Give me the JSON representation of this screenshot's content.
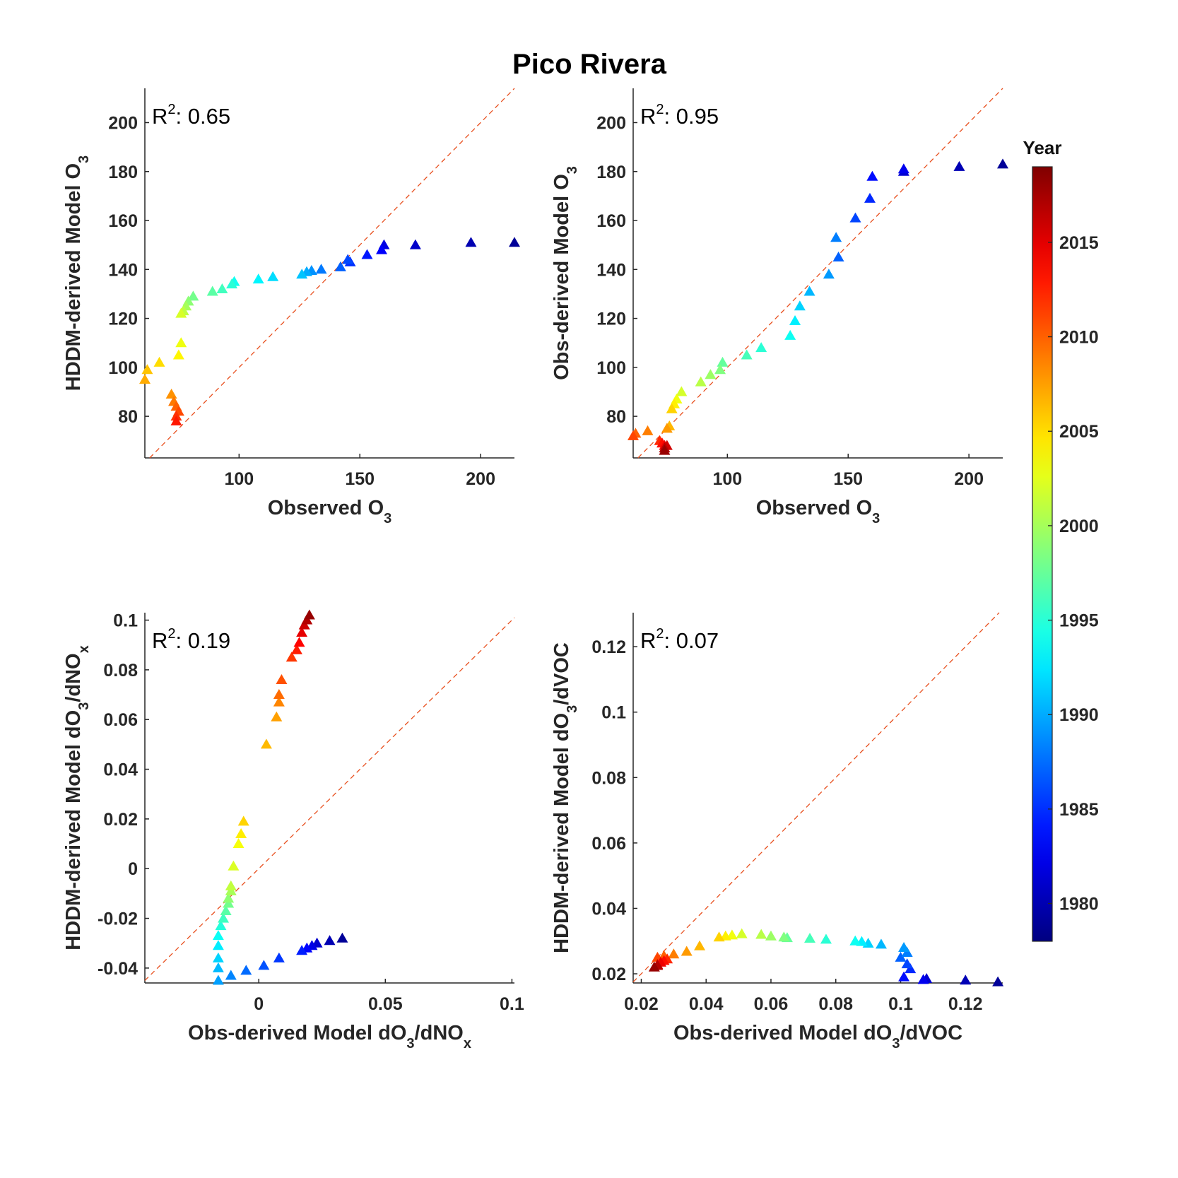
{
  "figure_title": "Pico Rivera",
  "colorbar": {
    "title": "Year",
    "range": [
      1978,
      2019
    ],
    "ticks": [
      1980,
      1985,
      1990,
      1995,
      2000,
      2005,
      2010,
      2015
    ],
    "tick_labels": [
      "1980",
      "1985",
      "1990",
      "1995",
      "2000",
      "2005",
      "2010",
      "2015"
    ],
    "colormap": "jet"
  },
  "reference_line": {
    "style": "dashed",
    "color": "#e8501f",
    "meaning": "1:1"
  },
  "chart_data": [
    {
      "type": "scatter",
      "panel": "top-left",
      "marker": "triangle",
      "annotation": {
        "prefix": "R",
        "sup": "2",
        "text": ": 0.65"
      },
      "xlabel": {
        "main": "Observed O",
        "sub": "3",
        "rest": ""
      },
      "ylabel": {
        "main": "HDDM-derived Model O",
        "sub": "3",
        "rest": ""
      },
      "xlim": [
        61,
        214
      ],
      "ylim": [
        63,
        214
      ],
      "xticks": [
        100,
        150,
        200
      ],
      "xtick_labels": [
        "100",
        "150",
        "200"
      ],
      "yticks": [
        80,
        100,
        120,
        140,
        160,
        180,
        200
      ],
      "ytick_labels": [
        "80",
        "100",
        "120",
        "140",
        "160",
        "180",
        "200"
      ],
      "points": [
        [
          214,
          151,
          1979
        ],
        [
          196,
          151,
          1980
        ],
        [
          173,
          150,
          1981
        ],
        [
          160,
          150,
          1982
        ],
        [
          159,
          148,
          1983
        ],
        [
          153,
          146,
          1984
        ],
        [
          146,
          143,
          1985
        ],
        [
          145,
          144,
          1986
        ],
        [
          142,
          141,
          1987
        ],
        [
          134,
          140,
          1988
        ],
        [
          130,
          139.5,
          1989
        ],
        [
          128,
          139,
          1990
        ],
        [
          126,
          138,
          1991
        ],
        [
          114,
          137,
          1992
        ],
        [
          108,
          136,
          1993
        ],
        [
          98,
          135,
          1994
        ],
        [
          97,
          134,
          1995
        ],
        [
          93,
          132,
          1996
        ],
        [
          89,
          131,
          1997
        ],
        [
          81,
          129,
          1998
        ],
        [
          79,
          127,
          1999
        ],
        [
          78,
          125,
          2000
        ],
        [
          77,
          123,
          2001
        ],
        [
          76,
          122,
          2002
        ],
        [
          76,
          110,
          2003
        ],
        [
          75,
          105,
          2004
        ],
        [
          67,
          102,
          2005
        ],
        [
          62,
          99,
          2006
        ],
        [
          61,
          95,
          2007
        ],
        [
          72,
          89,
          2008
        ],
        [
          73,
          86,
          2009
        ],
        [
          74,
          84,
          2010
        ],
        [
          75,
          82,
          2011
        ],
        [
          74,
          80,
          2012
        ],
        [
          74,
          78,
          2013
        ]
      ],
      "year_mode": "last_is_newest"
    },
    {
      "type": "scatter",
      "panel": "top-right",
      "marker": "triangle",
      "annotation": {
        "prefix": "R",
        "sup": "2",
        "text": ": 0.95"
      },
      "xlabel": {
        "main": "Observed O",
        "sub": "3",
        "rest": ""
      },
      "ylabel": {
        "main": "Obs-derived Model O",
        "sub": "3",
        "rest": ""
      },
      "xlim": [
        61,
        214
      ],
      "ylim": [
        63,
        214
      ],
      "xticks": [
        100,
        150,
        200
      ],
      "xtick_labels": [
        "100",
        "150",
        "200"
      ],
      "yticks": [
        80,
        100,
        120,
        140,
        160,
        180,
        200
      ],
      "ytick_labels": [
        "80",
        "100",
        "120",
        "140",
        "160",
        "180",
        "200"
      ],
      "points": [
        [
          214,
          183
        ],
        [
          196,
          182
        ],
        [
          173,
          180
        ],
        [
          173,
          181
        ],
        [
          160,
          178
        ],
        [
          159,
          169
        ],
        [
          153,
          161
        ],
        [
          146,
          145
        ],
        [
          145,
          153
        ],
        [
          142,
          138
        ],
        [
          134,
          131
        ],
        [
          130,
          125
        ],
        [
          128,
          119
        ],
        [
          126,
          113
        ],
        [
          114,
          108
        ],
        [
          108,
          105
        ],
        [
          98,
          102
        ],
        [
          97,
          99
        ],
        [
          93,
          97
        ],
        [
          89,
          94
        ],
        [
          81,
          90
        ],
        [
          79,
          87
        ],
        [
          78,
          85
        ],
        [
          77,
          83
        ],
        [
          76,
          76
        ],
        [
          75,
          75
        ],
        [
          67,
          74
        ],
        [
          62,
          73
        ],
        [
          61,
          72
        ],
        [
          72,
          70
        ],
        [
          73,
          69
        ],
        [
          74,
          68
        ],
        [
          75,
          68
        ],
        [
          74,
          67
        ],
        [
          74,
          66
        ]
      ]
    },
    {
      "type": "scatter",
      "panel": "bottom-left",
      "marker": "triangle",
      "annotation": {
        "prefix": "R",
        "sup": "2",
        "text": ": 0.19"
      },
      "xlabel": {
        "main": "Obs-derived Model dO",
        "sub": "3",
        "rest": "/dNO",
        "sub2": "x"
      },
      "ylabel": {
        "main": "HDDM-derived Model dO",
        "sub": "3",
        "rest": "/dNO",
        "sub2": "x"
      },
      "xlim": [
        -0.045,
        0.101
      ],
      "ylim": [
        -0.046,
        0.103
      ],
      "xticks": [
        0,
        0.05,
        0.1
      ],
      "xtick_labels": [
        "0",
        "0.05",
        "0.1"
      ],
      "yticks": [
        -0.04,
        -0.02,
        0,
        0.02,
        0.04,
        0.06,
        0.08,
        0.1
      ],
      "ytick_labels": [
        "-0.04",
        "-0.02",
        "0",
        "0.02",
        "0.04",
        "0.06",
        "0.08",
        "0.1"
      ],
      "points": [
        [
          0.033,
          -0.028
        ],
        [
          0.028,
          -0.029
        ],
        [
          0.023,
          -0.03
        ],
        [
          0.021,
          -0.031
        ],
        [
          0.019,
          -0.032
        ],
        [
          0.017,
          -0.033
        ],
        [
          0.008,
          -0.036
        ],
        [
          0.002,
          -0.039
        ],
        [
          -0.005,
          -0.041
        ],
        [
          -0.011,
          -0.043
        ],
        [
          -0.016,
          -0.045
        ],
        [
          -0.016,
          -0.04
        ],
        [
          -0.016,
          -0.036
        ],
        [
          -0.016,
          -0.031
        ],
        [
          -0.016,
          -0.027
        ],
        [
          -0.015,
          -0.023
        ],
        [
          -0.014,
          -0.02
        ],
        [
          -0.013,
          -0.017
        ],
        [
          -0.012,
          -0.014
        ],
        [
          -0.012,
          -0.012
        ],
        [
          -0.011,
          -0.009
        ],
        [
          -0.011,
          -0.007
        ],
        [
          -0.01,
          0.001
        ],
        [
          -0.008,
          0.01
        ],
        [
          -0.007,
          0.014
        ],
        [
          -0.006,
          0.019
        ],
        [
          0.003,
          0.05
        ],
        [
          0.007,
          0.061
        ],
        [
          0.008,
          0.067
        ],
        [
          0.008,
          0.07
        ],
        [
          0.009,
          0.076
        ],
        [
          0.013,
          0.085
        ],
        [
          0.015,
          0.088
        ],
        [
          0.016,
          0.091
        ],
        [
          0.017,
          0.095
        ],
        [
          0.018,
          0.098
        ],
        [
          0.019,
          0.1
        ],
        [
          0.02,
          0.102
        ]
      ]
    },
    {
      "type": "scatter",
      "panel": "bottom-right",
      "marker": "triangle",
      "annotation": {
        "prefix": "R",
        "sup": "2",
        "text": ": 0.07"
      },
      "xlabel": {
        "main": "Obs-derived Model dO",
        "sub": "3",
        "rest": "/dVOC"
      },
      "ylabel": {
        "main": "HDDM-derived Model dO",
        "sub": "3",
        "rest": "/dVOC"
      },
      "xlim": [
        0.0175,
        0.1315
      ],
      "ylim": [
        0.0172,
        0.1304
      ],
      "xticks": [
        0.02,
        0.04,
        0.06,
        0.08,
        0.1,
        0.12
      ],
      "xtick_labels": [
        "0.02",
        "0.04",
        "0.06",
        "0.08",
        "0.1",
        "0.12"
      ],
      "yticks": [
        0.02,
        0.04,
        0.06,
        0.08,
        0.1,
        0.12
      ],
      "ytick_labels": [
        "0.02",
        "0.04",
        "0.06",
        "0.08",
        "0.1",
        "0.12"
      ],
      "points": [
        [
          0.13,
          0.0175
        ],
        [
          0.12,
          0.018
        ],
        [
          0.108,
          0.0185
        ],
        [
          0.107,
          0.0182
        ],
        [
          0.101,
          0.019
        ],
        [
          0.103,
          0.0215
        ],
        [
          0.102,
          0.023
        ],
        [
          0.1,
          0.025
        ],
        [
          0.102,
          0.0265
        ],
        [
          0.101,
          0.028
        ],
        [
          0.094,
          0.029
        ],
        [
          0.09,
          0.0293
        ],
        [
          0.088,
          0.0298
        ],
        [
          0.086,
          0.03
        ],
        [
          0.077,
          0.0305
        ],
        [
          0.072,
          0.0308
        ],
        [
          0.065,
          0.031
        ],
        [
          0.064,
          0.0312
        ],
        [
          0.06,
          0.0315
        ],
        [
          0.057,
          0.032
        ],
        [
          0.051,
          0.0322
        ],
        [
          0.048,
          0.0318
        ],
        [
          0.046,
          0.0315
        ],
        [
          0.044,
          0.0312
        ],
        [
          0.038,
          0.0285
        ],
        [
          0.034,
          0.0268
        ],
        [
          0.03,
          0.026
        ],
        [
          0.027,
          0.0255
        ],
        [
          0.025,
          0.025
        ],
        [
          0.028,
          0.0245
        ],
        [
          0.027,
          0.024
        ],
        [
          0.026,
          0.0235
        ],
        [
          0.025,
          0.0228
        ],
        [
          0.025,
          0.0225
        ],
        [
          0.024,
          0.022
        ]
      ]
    }
  ]
}
